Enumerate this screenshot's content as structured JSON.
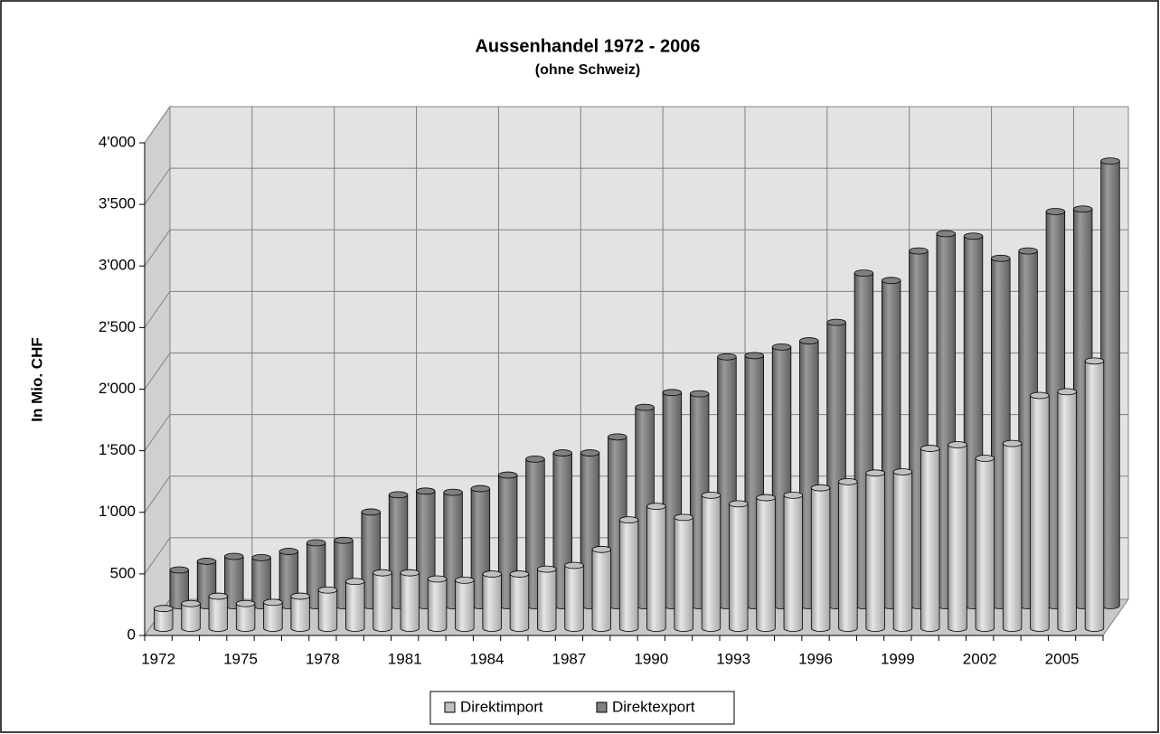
{
  "chart_data": {
    "type": "bar3d",
    "title": "Aussenhandel 1972 - 2006",
    "subtitle": "(ohne Schweiz)",
    "y_label": "In Mio. CHF",
    "categories": [
      "1972",
      null,
      null,
      "1975",
      null,
      null,
      "1978",
      null,
      null,
      "1981",
      null,
      null,
      "1984",
      null,
      null,
      "1987",
      null,
      null,
      "1990",
      null,
      null,
      "1993",
      null,
      null,
      "1996",
      null,
      null,
      "1999",
      null,
      null,
      "2002",
      null,
      null,
      "2005",
      null
    ],
    "series": [
      {
        "name": "Direktimport",
        "color": "#c0c0c0",
        "values": [
          160,
          200,
          260,
          200,
          210,
          260,
          310,
          380,
          450,
          450,
          400,
          390,
          440,
          440,
          480,
          510,
          640,
          880,
          990,
          900,
          1080,
          1010,
          1060,
          1080,
          1140,
          1190,
          1260,
          1270,
          1460,
          1490,
          1380,
          1500,
          1890,
          1920,
          2170
        ]
      },
      {
        "name": "Direktexport",
        "color": "#808080",
        "values": [
          290,
          360,
          400,
          390,
          440,
          510,
          530,
          760,
          900,
          930,
          920,
          950,
          1060,
          1190,
          1240,
          1240,
          1370,
          1610,
          1730,
          1720,
          2020,
          2030,
          2100,
          2150,
          2300,
          2700,
          2640,
          2880,
          3020,
          3000,
          2820,
          2880,
          3200,
          3220,
          3610
        ]
      }
    ],
    "ylim": [
      0,
      4000
    ],
    "yticks": [
      0,
      500,
      {
        "value": 1000,
        "label": "1'000"
      },
      {
        "value": 1500,
        "label": "1'500"
      },
      {
        "value": 2000,
        "label": "2'000"
      },
      {
        "value": 2500,
        "label": "2'500"
      },
      {
        "value": 3000,
        "label": "3'000"
      },
      {
        "value": 3500,
        "label": "3'500"
      },
      {
        "value": 4000,
        "label": "4'000"
      }
    ],
    "grid": true,
    "legend": "bottom"
  }
}
